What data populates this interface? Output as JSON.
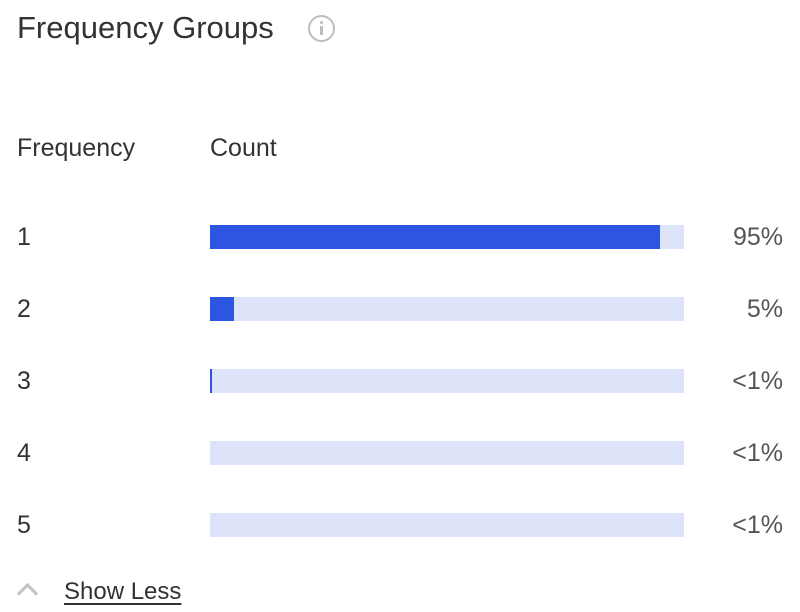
{
  "header": {
    "title": "Frequency Groups",
    "info_icon": "info-circle-icon"
  },
  "columns": {
    "frequency": "Frequency",
    "count": "Count"
  },
  "colors": {
    "bar_fill": "#2c55e0",
    "bar_track": "#dde3f8"
  },
  "rows": [
    {
      "frequency": "1",
      "percent_label": "95%",
      "fraction": 0.95
    },
    {
      "frequency": "2",
      "percent_label": "5%",
      "fraction": 0.05
    },
    {
      "frequency": "3",
      "percent_label": "<1%",
      "fraction": 0.003
    },
    {
      "frequency": "4",
      "percent_label": "<1%",
      "fraction": 0
    },
    {
      "frequency": "5",
      "percent_label": "<1%",
      "fraction": 0
    }
  ],
  "toggle": {
    "label": "Show Less",
    "icon": "chevron-up-icon"
  }
}
